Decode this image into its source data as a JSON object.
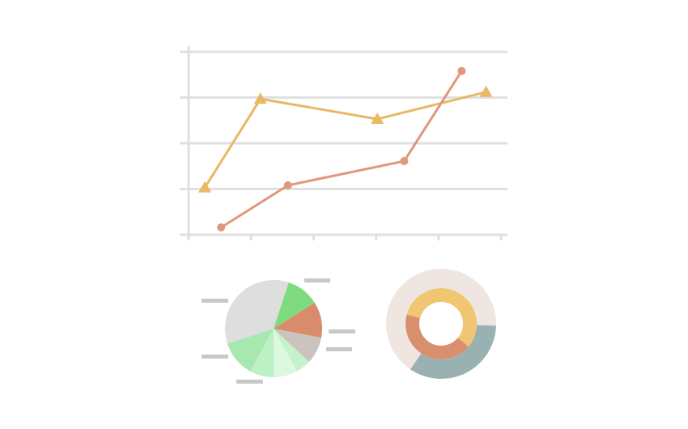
{
  "chart_data": [
    {
      "type": "line",
      "xlim": [
        0,
        5
      ],
      "xticks": [
        0,
        1,
        2,
        3,
        4,
        5
      ],
      "ylim": [
        0,
        4
      ],
      "yticks": [
        0,
        1,
        2,
        3,
        4
      ],
      "grid": true,
      "series": [
        {
          "color": "#e8b865",
          "marker": "triangle",
          "x": [
            0.26,
            1.15,
            3.02,
            4.76
          ],
          "values": [
            1.03,
            2.97,
            2.53,
            3.12
          ]
        },
        {
          "color": "#e0977c",
          "marker": "circle",
          "x": [
            0.52,
            1.59,
            3.45,
            4.37
          ],
          "values": [
            0.16,
            1.08,
            1.61,
            3.58
          ]
        }
      ]
    },
    {
      "type": "pie",
      "values": [
        11,
        12,
        9,
        5,
        8,
        8,
        12,
        35
      ],
      "colors": [
        "#7edc7e",
        "#d98c6c",
        "#cbc3bd",
        "#c4f2cc",
        "#dcf9df",
        "#bdf0c5",
        "#a6e8b0",
        "#dedede"
      ]
    },
    {
      "type": "donut",
      "series": [
        {
          "values": [
            122,
            238
          ],
          "colors": [
            "#9ab1b1",
            "#efe6e1"
          ]
        },
        {
          "values": [
            205,
            155
          ],
          "colors": [
            "#f0c672",
            "#d98f6e"
          ]
        }
      ]
    }
  ]
}
